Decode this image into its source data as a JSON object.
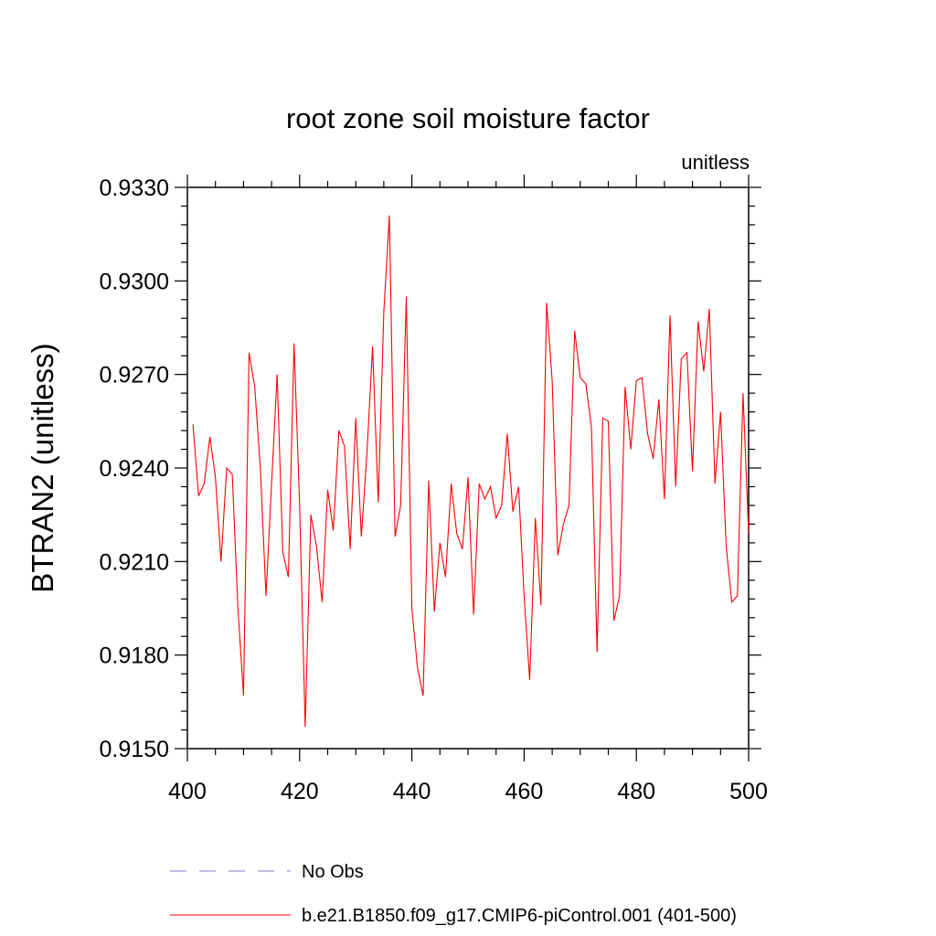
{
  "chart_data": {
    "type": "line",
    "title": "root zone soil moisture factor",
    "units": "unitless",
    "ylabel": "BTRAN2  (unitless)",
    "xlabel": "",
    "xlim": [
      400,
      500
    ],
    "ylim": [
      0.915,
      0.933
    ],
    "xticks": [
      400,
      420,
      440,
      460,
      480,
      500
    ],
    "yticks": [
      "0.9150",
      "0.9180",
      "0.9210",
      "0.9240",
      "0.9270",
      "0.9300",
      "0.9330"
    ],
    "grid": false,
    "legend_position": "bottom",
    "legend": [
      {
        "name": "No Obs",
        "color": "#7b7bc8",
        "dash": true
      },
      {
        "name": "b.e21.B1850.f09_g17.CMIP6-piControl.001 (401-500)",
        "color": "#ff0000",
        "dash": false
      }
    ],
    "series": [
      {
        "name": "b.e21.B1850.f09_g17.CMIP6-piControl.001 (401-500)",
        "color": "#ff0000",
        "x": [
          401,
          402,
          403,
          404,
          405,
          406,
          407,
          408,
          409,
          410,
          411,
          412,
          413,
          414,
          415,
          416,
          417,
          418,
          419,
          420,
          421,
          422,
          423,
          424,
          425,
          426,
          427,
          428,
          429,
          430,
          431,
          432,
          433,
          434,
          435,
          436,
          437,
          438,
          439,
          440,
          441,
          442,
          443,
          444,
          445,
          446,
          447,
          448,
          449,
          450,
          451,
          452,
          453,
          454,
          455,
          456,
          457,
          458,
          459,
          460,
          461,
          462,
          463,
          464,
          465,
          466,
          467,
          468,
          469,
          470,
          471,
          472,
          473,
          474,
          475,
          476,
          477,
          478,
          479,
          480,
          481,
          482,
          483,
          484,
          485,
          486,
          487,
          488,
          489,
          490,
          491,
          492,
          493,
          494,
          495,
          496,
          497,
          498,
          499,
          500
        ],
        "y": [
          0.9254,
          0.9231,
          0.9235,
          0.925,
          0.9237,
          0.921,
          0.924,
          0.9238,
          0.9195,
          0.9167,
          0.9277,
          0.9266,
          0.924,
          0.9199,
          0.9235,
          0.927,
          0.9213,
          0.9205,
          0.928,
          0.9228,
          0.9157,
          0.9225,
          0.9215,
          0.9197,
          0.9233,
          0.922,
          0.9252,
          0.9247,
          0.9214,
          0.9256,
          0.9218,
          0.9245,
          0.9279,
          0.9229,
          0.929,
          0.9321,
          0.9218,
          0.9228,
          0.9295,
          0.9195,
          0.9176,
          0.9167,
          0.9236,
          0.9194,
          0.9216,
          0.9205,
          0.9235,
          0.9219,
          0.9214,
          0.9237,
          0.9193,
          0.9235,
          0.923,
          0.9234,
          0.9224,
          0.9228,
          0.9251,
          0.9226,
          0.9234,
          0.9199,
          0.9172,
          0.9224,
          0.9196,
          0.9293,
          0.9268,
          0.9212,
          0.9222,
          0.9228,
          0.9284,
          0.9269,
          0.9267,
          0.9253,
          0.9181,
          0.9256,
          0.9255,
          0.9191,
          0.9199,
          0.9266,
          0.9246,
          0.9268,
          0.9269,
          0.9251,
          0.9243,
          0.9262,
          0.923,
          0.9289,
          0.9234,
          0.9275,
          0.9277,
          0.9239,
          0.9287,
          0.9271,
          0.9291,
          0.9235,
          0.9258,
          0.9215,
          0.9197,
          0.9199,
          0.9264,
          0.9219
        ]
      }
    ]
  }
}
